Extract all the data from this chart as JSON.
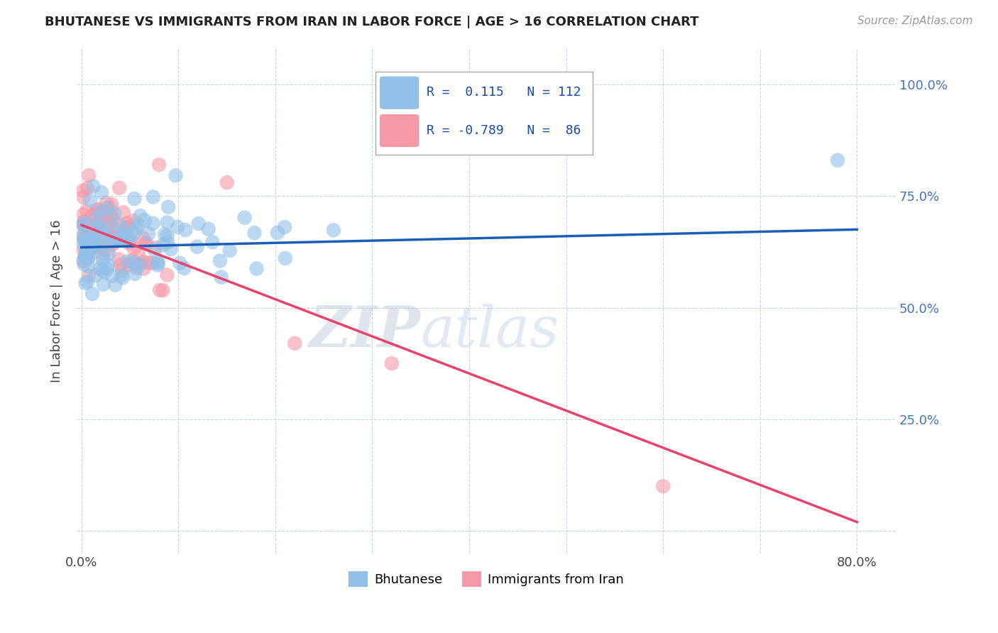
{
  "title": "BHUTANESE VS IMMIGRANTS FROM IRAN IN LABOR FORCE | AGE > 16 CORRELATION CHART",
  "source": "Source: ZipAtlas.com",
  "ylabel": "In Labor Force | Age > 16",
  "R_blue": 0.115,
  "N_blue": 112,
  "R_pink": -0.789,
  "N_pink": 86,
  "blue_line_x": [
    0.0,
    0.8
  ],
  "blue_line_y": [
    0.635,
    0.675
  ],
  "pink_line_x": [
    0.0,
    0.8
  ],
  "pink_line_y": [
    0.685,
    0.02
  ],
  "dot_color_blue": "#92c0e8",
  "dot_color_pink": "#f598a8",
  "line_color_blue": "#1a5eb8",
  "line_color_pink": "#e8436a",
  "watermark_zip": "ZIP",
  "watermark_atlas": "atlas",
  "background_color": "#ffffff",
  "grid_color": "#c8d4e8",
  "title_color": "#222222",
  "xlim": [
    -0.005,
    0.84
  ],
  "ylim": [
    -0.05,
    1.08
  ],
  "x_tick_positions": [
    0.0,
    0.1,
    0.2,
    0.3,
    0.4,
    0.5,
    0.6,
    0.7,
    0.8
  ],
  "x_tick_labels": [
    "0.0%",
    "",
    "",
    "",
    "",
    "",
    "",
    "",
    "80.0%"
  ],
  "y_tick_positions": [
    0.0,
    0.25,
    0.5,
    0.75,
    1.0
  ],
  "y_tick_labels": [
    "",
    "25.0%",
    "50.0%",
    "75.0%",
    "100.0%"
  ],
  "legend_labels": [
    "Bhutanese",
    "Immigrants from Iran"
  ],
  "legend_colors": [
    "#92c0e8",
    "#f598a8"
  ]
}
